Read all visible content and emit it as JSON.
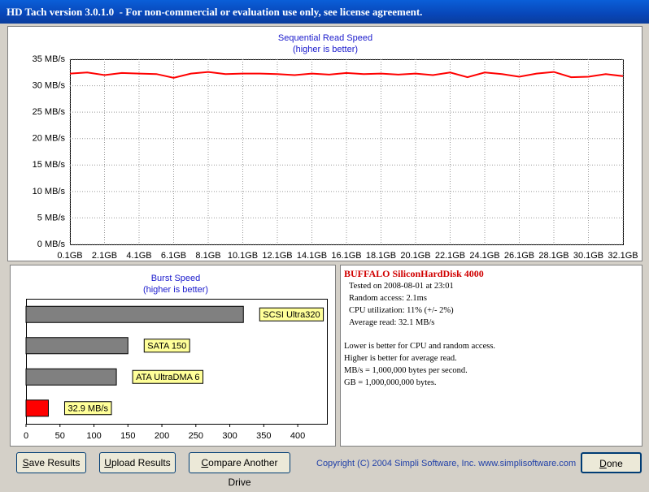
{
  "window": {
    "title": "HD Tach version 3.0.1.0  - For non-commercial or evaluation use only, see license agreement."
  },
  "chart_data": [
    {
      "type": "line",
      "title": "Sequential Read Speed",
      "subtitle": "(higher is better)",
      "x": [
        0.1,
        1.1,
        2.1,
        3.1,
        4.1,
        5.1,
        6.1,
        7.1,
        8.1,
        9.1,
        10.1,
        11.1,
        12.1,
        13.1,
        14.1,
        15.1,
        16.1,
        17.1,
        18.1,
        19.1,
        20.1,
        21.1,
        22.1,
        23.1,
        24.1,
        25.1,
        26.1,
        27.1,
        28.1,
        29.1,
        30.1,
        31.1,
        32.1
      ],
      "values": [
        32.3,
        32.5,
        32.0,
        32.4,
        32.3,
        32.2,
        31.5,
        32.3,
        32.6,
        32.2,
        32.3,
        32.3,
        32.2,
        32.0,
        32.3,
        32.1,
        32.4,
        32.2,
        32.3,
        32.1,
        32.3,
        32.0,
        32.5,
        31.6,
        32.5,
        32.2,
        31.7,
        32.3,
        32.6,
        31.6,
        31.7,
        32.2,
        31.8
      ],
      "color": "#ff0000",
      "xlim": [
        0.1,
        32.1
      ],
      "xticks": [
        {
          "value": 0.1,
          "label": "0.1GB"
        },
        {
          "value": 2.1,
          "label": "2.1GB"
        },
        {
          "value": 4.1,
          "label": "4.1GB"
        },
        {
          "value": 6.1,
          "label": "6.1GB"
        },
        {
          "value": 8.1,
          "label": "8.1GB"
        },
        {
          "value": 10.1,
          "label": "10.1GB"
        },
        {
          "value": 12.1,
          "label": "12.1GB"
        },
        {
          "value": 14.1,
          "label": "14.1GB"
        },
        {
          "value": 16.1,
          "label": "16.1GB"
        },
        {
          "value": 18.1,
          "label": "18.1GB"
        },
        {
          "value": 20.1,
          "label": "20.1GB"
        },
        {
          "value": 22.1,
          "label": "22.1GB"
        },
        {
          "value": 24.1,
          "label": "24.1GB"
        },
        {
          "value": 26.1,
          "label": "26.1GB"
        },
        {
          "value": 28.1,
          "label": "28.1GB"
        },
        {
          "value": 30.1,
          "label": "30.1GB"
        },
        {
          "value": 32.1,
          "label": "32.1GB"
        }
      ],
      "ylim": [
        0,
        35
      ],
      "yticks": [
        {
          "value": 0,
          "label": "0 MB/s"
        },
        {
          "value": 5,
          "label": "5 MB/s"
        },
        {
          "value": 10,
          "label": "10 MB/s"
        },
        {
          "value": 15,
          "label": "15 MB/s"
        },
        {
          "value": 20,
          "label": "20 MB/s"
        },
        {
          "value": 25,
          "label": "25 MB/s"
        },
        {
          "value": 30,
          "label": "30 MB/s"
        },
        {
          "value": 35,
          "label": "35 MB/s"
        }
      ],
      "grid": true
    },
    {
      "type": "hbar",
      "title": "Burst Speed",
      "subtitle": "(higher is better)",
      "categories": [
        "SCSI Ultra320",
        "SATA 150",
        "ATA UltraDMA 6",
        null
      ],
      "values": [
        320,
        150,
        133,
        32.9
      ],
      "value_labels": [
        null,
        null,
        null,
        "32.9 MB/s"
      ],
      "colors": [
        "#808080",
        "#808080",
        "#808080",
        "#ff0000"
      ],
      "xlim": [
        0,
        443
      ],
      "xticks": [
        0,
        50,
        100,
        150,
        200,
        250,
        300,
        350,
        400
      ]
    }
  ],
  "info": {
    "drive": "BUFFALO SiliconHardDisk 4000",
    "stats": [
      "Tested on 2008-08-01 at 23:01",
      "Random access: 2.1ms",
      "CPU utilization: 11% (+/- 2%)",
      "Average read: 32.1 MB/s"
    ],
    "notes": [
      "Lower is better for CPU and random access.",
      "Higher is better for average read.",
      "MB/s = 1,000,000 bytes per second.",
      "GB = 1,000,000,000 bytes."
    ]
  },
  "buttons": [
    "Save Results",
    "Upload Results",
    "Compare Another Drive",
    "Done"
  ],
  "copyright": "Copyright (C) 2004 Simpli Software, Inc. www.simplisoftware.com"
}
